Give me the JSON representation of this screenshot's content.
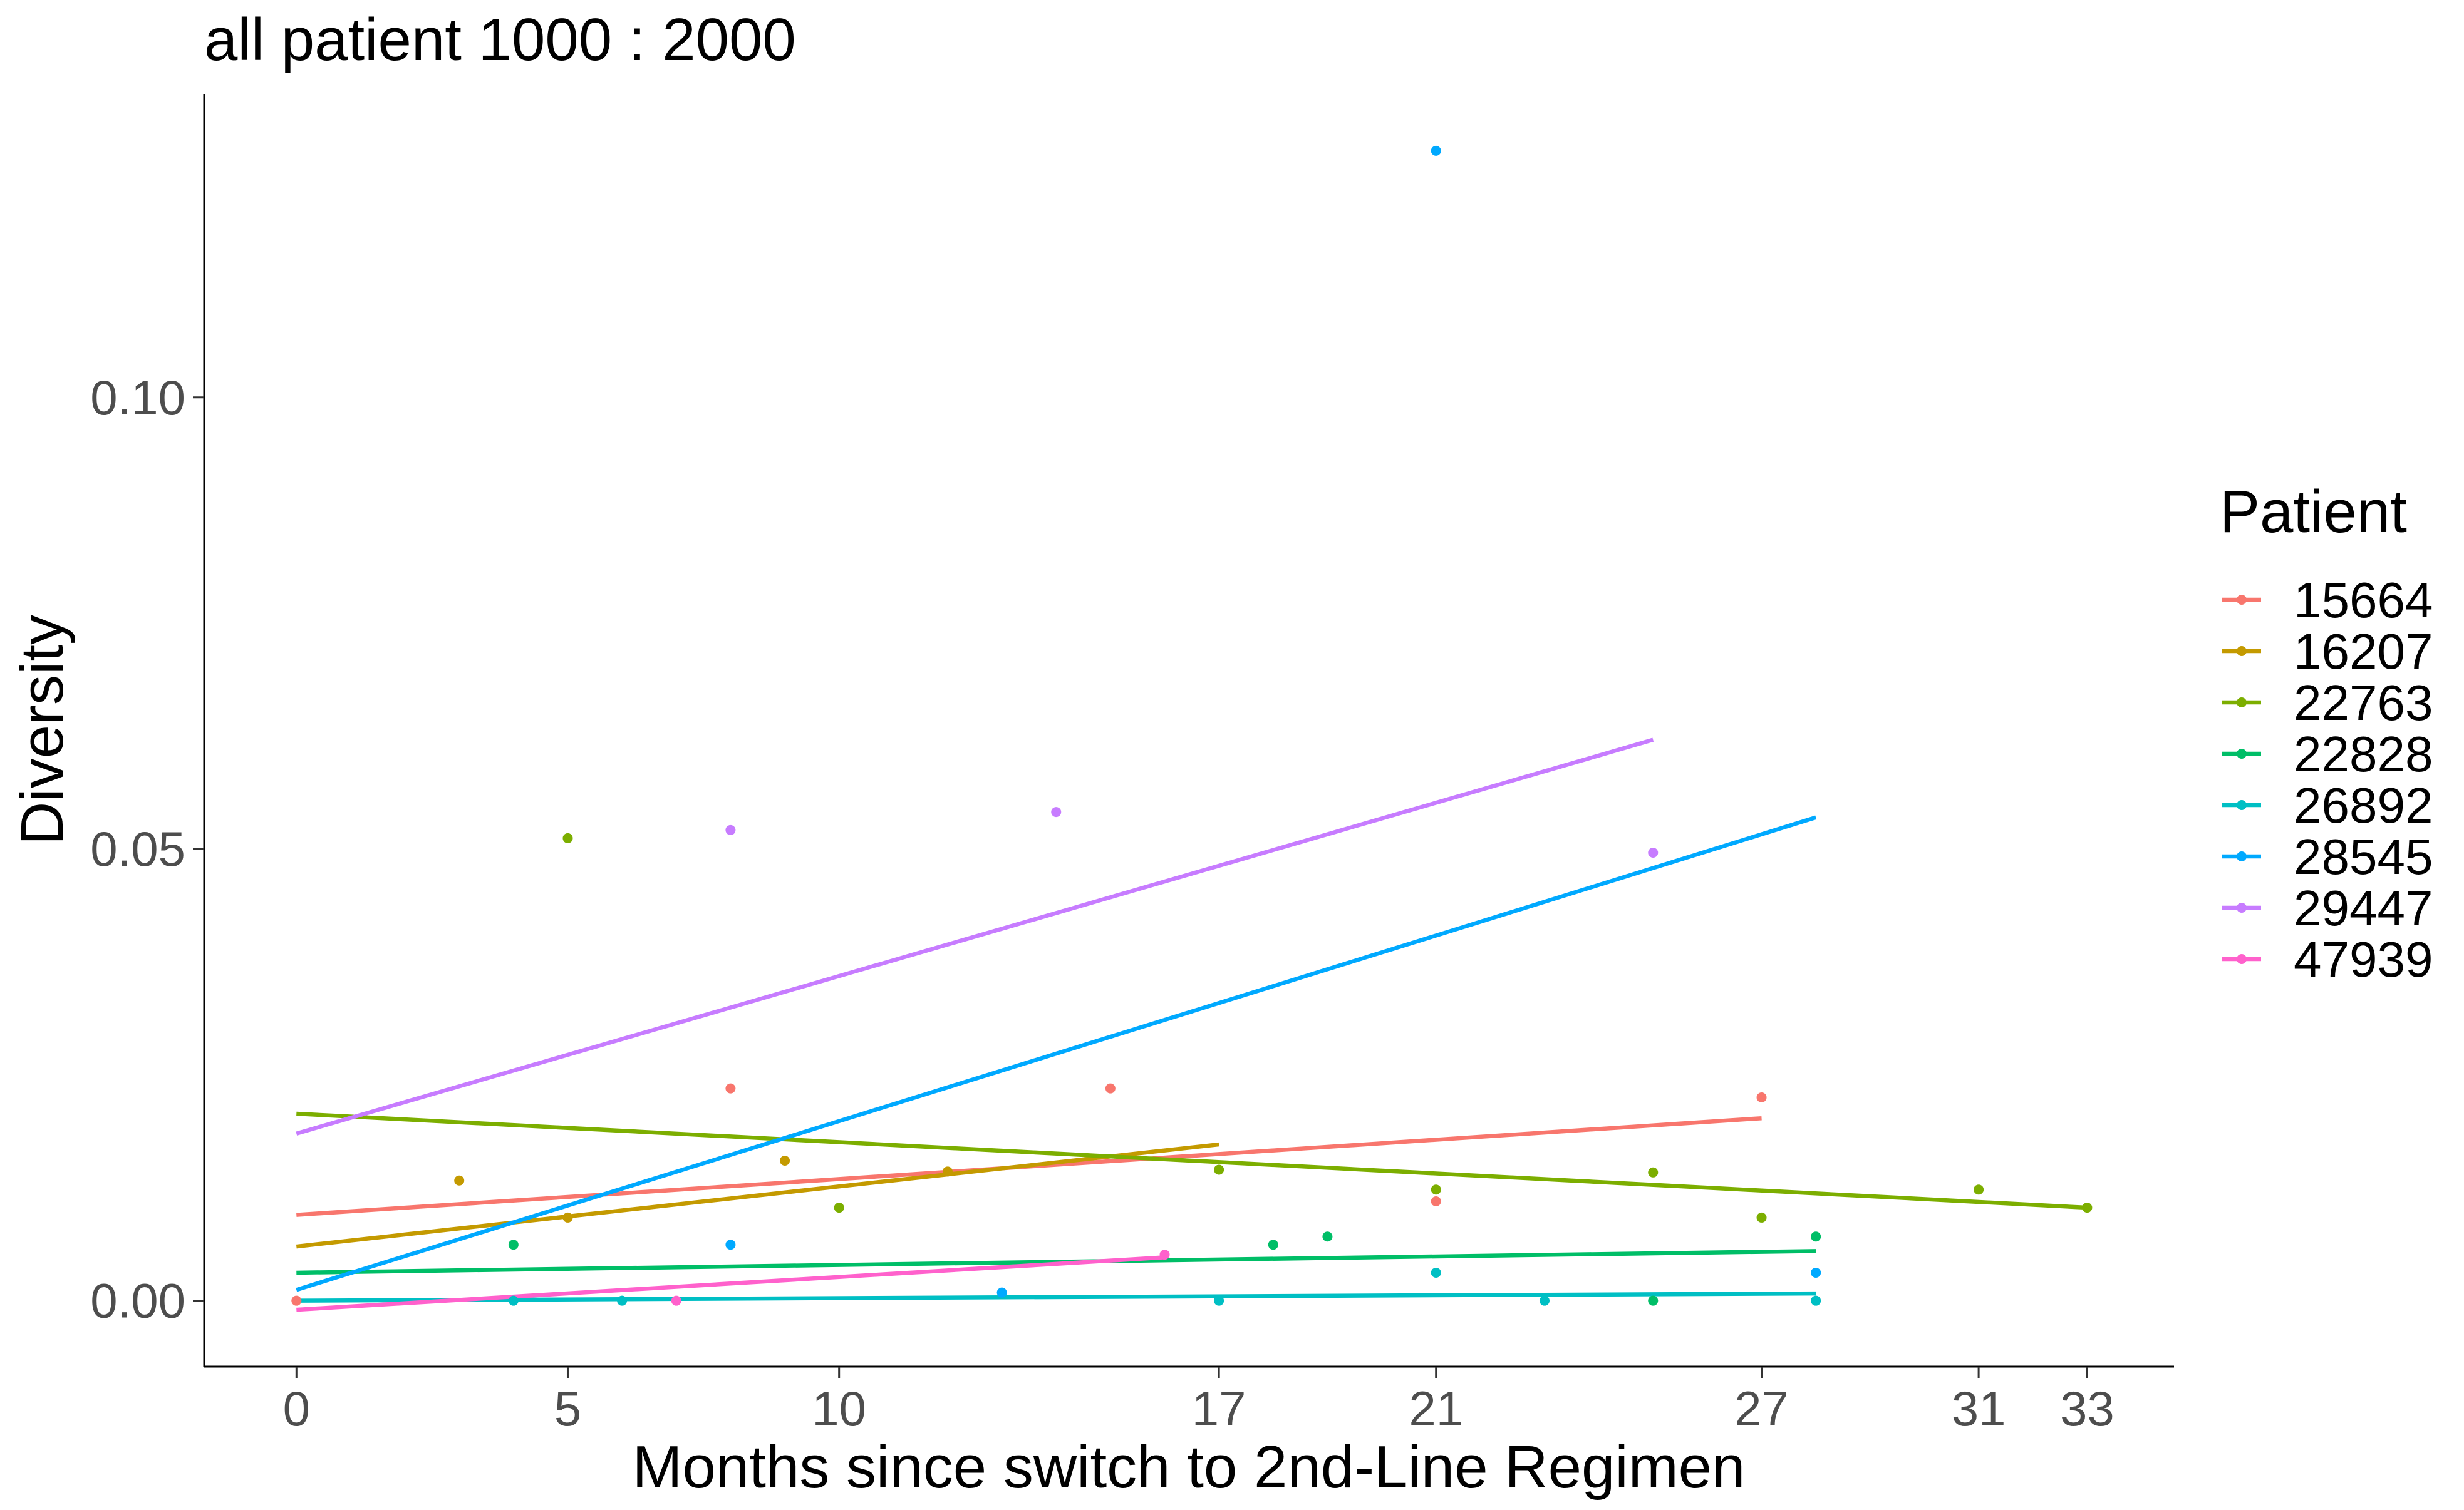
{
  "chart_data": {
    "type": "scatter",
    "title": "all patient 1000 : 2000",
    "xlabel": "Months since switch to 2nd-Line Regimen",
    "ylabel": "Diversity",
    "xlim": [
      -1.7,
      34.6
    ],
    "ylim": [
      -0.0073,
      0.1336
    ],
    "x_ticks": [
      0,
      5,
      10,
      17,
      21,
      27,
      31,
      33
    ],
    "y_ticks": [
      0.0,
      0.05,
      0.1
    ],
    "y_tick_labels": [
      "0.00",
      "0.05",
      "0.10"
    ],
    "grid": false,
    "legend": {
      "title": "Patient",
      "position": "right"
    },
    "series": [
      {
        "name": "15664",
        "color": "#F8766D",
        "points": [
          [
            0,
            0.0
          ],
          [
            8,
            0.0235
          ],
          [
            15,
            0.0235
          ],
          [
            21,
            0.011
          ],
          [
            27,
            0.0225
          ]
        ],
        "trend": [
          [
            0,
            0.0095
          ],
          [
            27,
            0.0202
          ]
        ]
      },
      {
        "name": "16207",
        "color": "#C49A00",
        "points": [
          [
            3,
            0.0133
          ],
          [
            5,
            0.0092
          ],
          [
            9,
            0.0155
          ],
          [
            12,
            0.0143
          ]
        ],
        "trend": [
          [
            0,
            0.006
          ],
          [
            17,
            0.0173
          ]
        ]
      },
      {
        "name": "22763",
        "color": "#7CAE00",
        "points": [
          [
            5,
            0.0512
          ],
          [
            10,
            0.0103
          ],
          [
            17,
            0.0145
          ],
          [
            21,
            0.0123
          ],
          [
            25,
            0.0142
          ],
          [
            27,
            0.0092
          ],
          [
            31,
            0.0123
          ],
          [
            33,
            0.0103
          ]
        ],
        "trend": [
          [
            0,
            0.0207
          ],
          [
            33,
            0.0103
          ]
        ]
      },
      {
        "name": "22828",
        "color": "#00BE67",
        "points": [
          [
            4,
            0.0062
          ],
          [
            18,
            0.0062
          ],
          [
            19,
            0.0071
          ],
          [
            25,
            0.0
          ],
          [
            28,
            0.0071
          ]
        ],
        "trend": [
          [
            0,
            0.0031
          ],
          [
            28,
            0.0055
          ]
        ]
      },
      {
        "name": "26892",
        "color": "#00BFC4",
        "points": [
          [
            4,
            0.0
          ],
          [
            6,
            0.0
          ],
          [
            17,
            0.0
          ],
          [
            21,
            0.0031
          ],
          [
            23,
            0.0
          ],
          [
            28,
            0.0
          ]
        ],
        "trend": [
          [
            0,
            0.0
          ],
          [
            28,
            0.0008
          ]
        ]
      },
      {
        "name": "28545",
        "color": "#00A9FF",
        "points": [
          [
            8,
            0.0062
          ],
          [
            13,
            0.0009
          ],
          [
            21,
            0.1273
          ],
          [
            28,
            0.0031
          ]
        ],
        "trend": [
          [
            0,
            0.0012
          ],
          [
            28,
            0.0535
          ]
        ]
      },
      {
        "name": "29447",
        "color": "#C77CFF",
        "points": [
          [
            8,
            0.0521
          ],
          [
            14,
            0.0541
          ],
          [
            25,
            0.0496
          ]
        ],
        "trend": [
          [
            0,
            0.0185
          ],
          [
            25,
            0.0621
          ]
        ]
      },
      {
        "name": "47939",
        "color": "#FF61CC",
        "points": [
          [
            7,
            0.0
          ],
          [
            16,
            0.0051
          ]
        ],
        "trend": [
          [
            0,
            -0.001
          ],
          [
            16,
            0.0048
          ]
        ]
      }
    ]
  }
}
